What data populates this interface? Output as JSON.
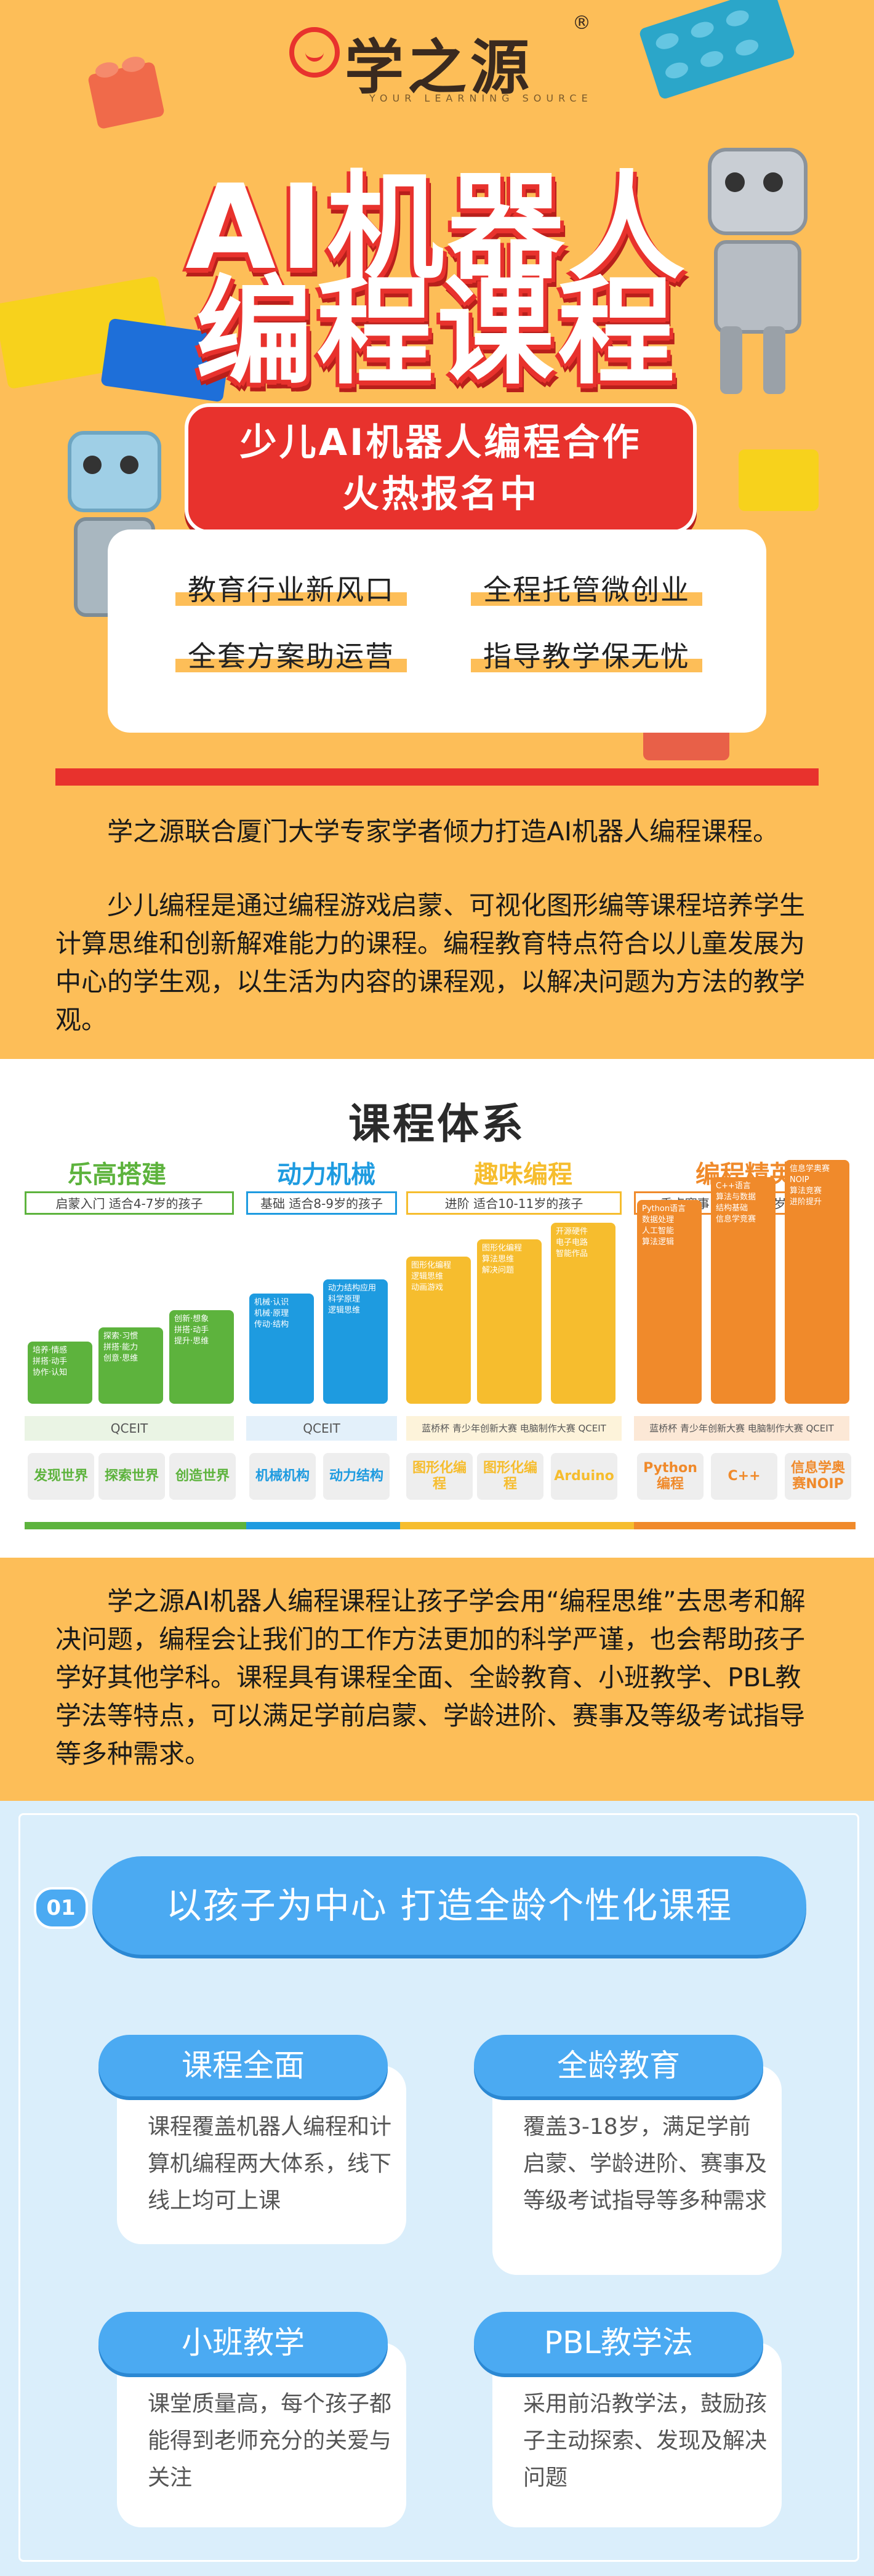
{
  "header": {
    "logo_text": "学之源",
    "logo_sub": "YOUR LEARNING SOURCE",
    "logo_reg": "®",
    "title_line1": "AI机器人",
    "title_line2": "编程课程"
  },
  "banner": {
    "line1": "少儿AI机器人编程合作",
    "line2": "火热报名中"
  },
  "tags": [
    "教育行业新风口",
    "全程托管微创业",
    "全套方案助运营",
    "指导教学保无忧"
  ],
  "paragraphs": {
    "p1": "学之源联合厦门大学专家学者倾力打造AI机器人编程课程。",
    "p2": "少儿编程是通过编程游戏启蒙、可视化图形编等课程培养学生计算思维和创新解难能力的课程。编程教育特点符合以儿童发展为中心的学生观，以生活为内容的课程观，以解决问题为方法的教学观。",
    "p3": "学之源AI机器人编程课程让孩子学会用“编程思维”去思考和解决问题，编程会让我们的工作方法更加的科学严谨，也会帮助孩子学好其他学科。课程具有课程全面、全龄教育、小班教学、PBL教学法等特点，可以满足学前启蒙、学龄进阶、赛事及等级考试指导等多种需求。"
  },
  "course_system": {
    "title": "课程体系",
    "stages": [
      {
        "name": "乐高搭建",
        "sub": "启蒙入门  适合4-7岁的孩子",
        "color": "#5DB33D"
      },
      {
        "name": "动力机械",
        "sub": "基础  适合8-9岁的孩子",
        "color": "#1E9BE0"
      },
      {
        "name": "趣味编程",
        "sub": "进阶  适合10-11岁的孩子",
        "color": "#F6BD2E"
      },
      {
        "name": "编程精英",
        "sub": "重点赛事  适合12-15岁的孩子",
        "color": "#F08A2B"
      }
    ],
    "bars": [
      {
        "color": "#5DB33D",
        "level": 0.22,
        "label": "培养·情感\n拼搭·动手\n协作·认知"
      },
      {
        "color": "#5DB33D",
        "level": 0.27,
        "label": "探索·习惯\n拼搭·能力\n创意·思维"
      },
      {
        "color": "#5DB33D",
        "level": 0.33,
        "label": "创新·想象\n拼搭·动手\n提升·思维"
      },
      {
        "color": "#1E9BE0",
        "level": 0.39,
        "label": "机械·认识\n机械·原理\n传动·结构"
      },
      {
        "color": "#1E9BE0",
        "level": 0.44,
        "label": "动力结构应用\n科学原理\n逻辑思维"
      },
      {
        "color": "#F6BD2E",
        "level": 0.52,
        "label": "图形化编程\n逻辑思维\n动画游戏"
      },
      {
        "color": "#F6BD2E",
        "level": 0.58,
        "label": "图形化编程\n算法思维\n解决问题"
      },
      {
        "color": "#F6BD2E",
        "level": 0.64,
        "label": "开源硬件\n电子电路\n智能作品"
      },
      {
        "color": "#F08A2B",
        "level": 0.72,
        "label": "Python语言\n数据处理\n人工智能\n算法逻辑"
      },
      {
        "color": "#F08A2B",
        "level": 0.8,
        "label": "C++语言\n算法与数据\n结构基础\n信息学竞赛"
      },
      {
        "color": "#F08A2B",
        "level": 0.86,
        "label": "信息学奥赛\nNOIP\n算法竞赛\n进阶提升"
      }
    ],
    "strip_labels": [
      "QCEIT",
      "QCEIT",
      "蓝桥杯  青少年创新大赛  电脑制作大赛  QCEIT",
      "蓝桥杯  青少年创新大赛  电脑制作大赛  QCEIT"
    ],
    "chips": [
      "发现世界",
      "探索世界",
      "创造世界",
      "机械机构",
      "动力结构",
      "图形化编程",
      "图形化编程",
      "Arduino",
      "Python编程",
      "C++",
      "信息学奥赛NOIP"
    ]
  },
  "features": {
    "num": "01",
    "header": "以孩子为中心  打造全龄个性化课程",
    "cards": [
      {
        "title": "课程全面",
        "body": "课程覆盖机器人编程和计算机编程两大体系，线下线上均可上课"
      },
      {
        "title": "全龄教育",
        "body": "覆盖3-18岁，满足学前启蒙、学龄进阶、赛事及等级考试指导等多种需求"
      },
      {
        "title": "小班教学",
        "body": "课堂质量高，每个孩子都能得到老师充分的关爱与关注"
      },
      {
        "title": "PBL教学法",
        "body": "采用前沿教学法，鼓励孩子主动探索、发现及解决问题"
      }
    ]
  },
  "colors": {
    "accent": "#E8322D",
    "bg": "#FDBE58",
    "blue": "#4BAAF2"
  }
}
